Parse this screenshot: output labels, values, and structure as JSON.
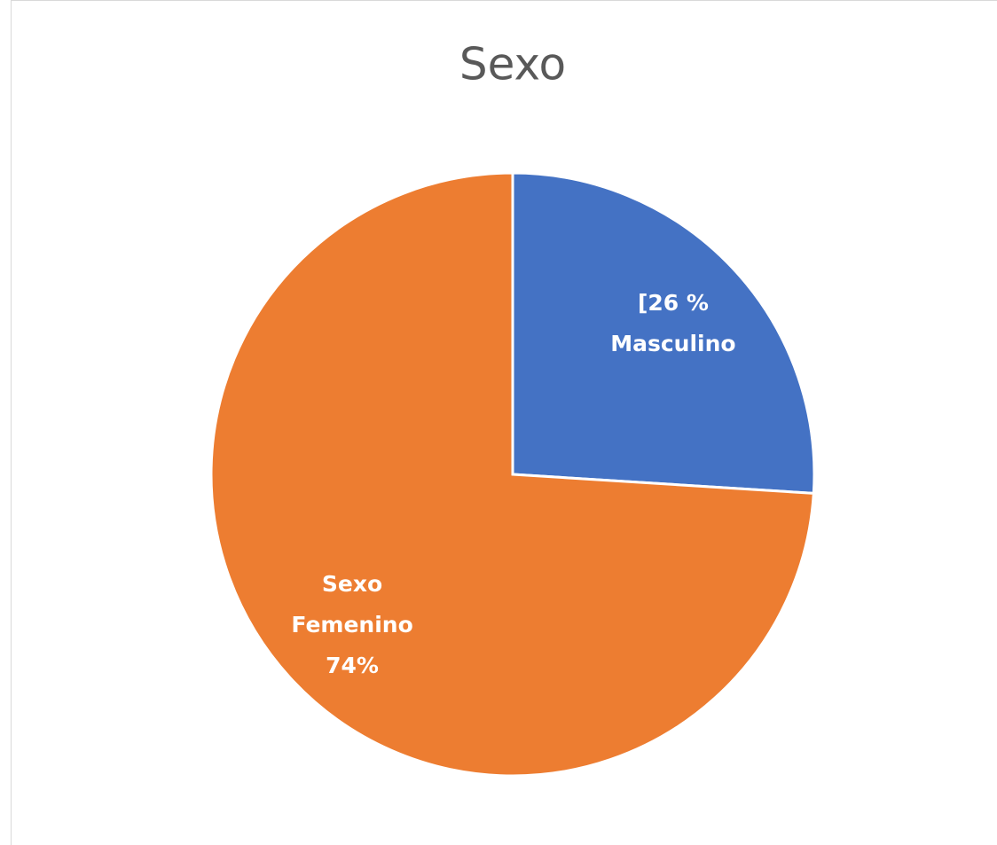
{
  "chart_data": {
    "type": "pie",
    "title": "Sexo",
    "categories": [
      "Masculino",
      "Sexo Femenino"
    ],
    "values": [
      26,
      74
    ],
    "value_labels": [
      "[26 %",
      "74%"
    ],
    "colors": [
      "#4472c4",
      "#ed7d31"
    ]
  }
}
